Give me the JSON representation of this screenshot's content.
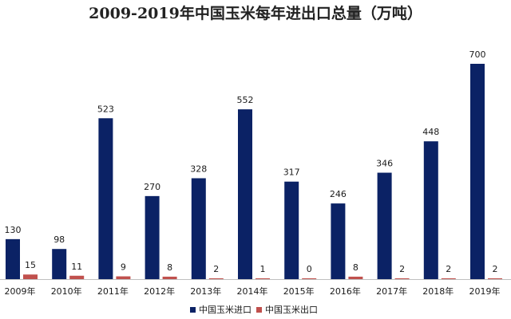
{
  "chart_data": {
    "type": "bar",
    "title": "2009-2019年中国玉米每年进出口总量（万吨）",
    "categories": [
      "2009年",
      "2010年",
      "2011年",
      "2012年",
      "2013年",
      "2014年",
      "2015年",
      "2016年",
      "2017年",
      "2018年",
      "2019年"
    ],
    "series": [
      {
        "name": "中国玉米进口",
        "color": "#0b2265",
        "values": [
          130,
          98,
          523,
          270,
          328,
          552,
          317,
          246,
          346,
          448,
          700
        ]
      },
      {
        "name": "中国玉米出口",
        "color": "#c0504d",
        "values": [
          15,
          11,
          9,
          8,
          2,
          1,
          0,
          8,
          2,
          2,
          2
        ]
      }
    ],
    "ylim": [
      0,
      700
    ],
    "grid": false,
    "legend_position": "bottom"
  }
}
